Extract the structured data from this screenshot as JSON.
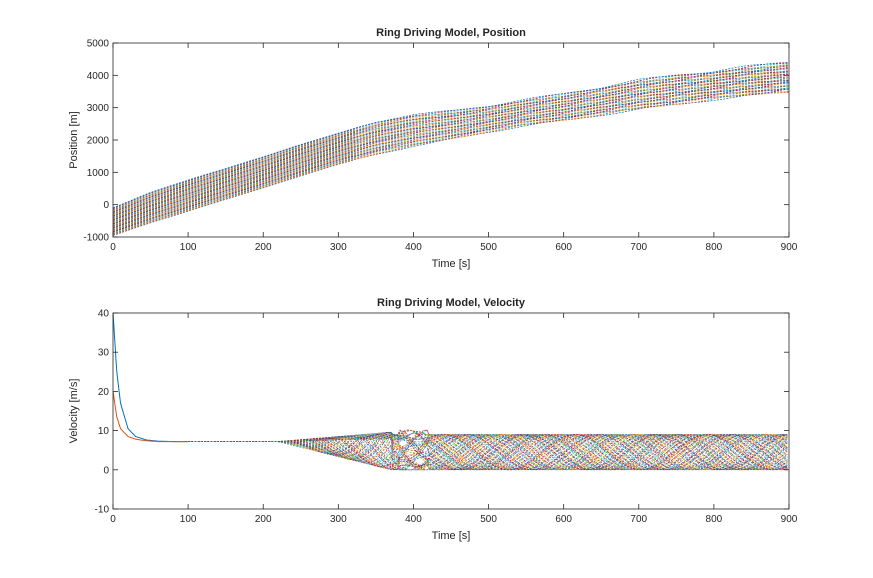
{
  "chart_data": [
    {
      "type": "line",
      "title": "Ring Driving Model, Position",
      "xlabel": "Time [s]",
      "ylabel": "Position [m]",
      "xlim": [
        0,
        900
      ],
      "ylim": [
        -1000,
        5000
      ],
      "xticks": [
        0,
        100,
        200,
        300,
        400,
        500,
        600,
        700,
        800,
        900
      ],
      "yticks": [
        -1000,
        0,
        1000,
        2000,
        3000,
        4000,
        5000
      ],
      "grid": false,
      "legend": "none",
      "series_count": 50,
      "colors": [
        "#0072BD",
        "#D95319",
        "#EDB120",
        "#7E2F8E",
        "#77AC30",
        "#4DBEEE",
        "#A2142F"
      ],
      "envelope": {
        "x": [
          0,
          50,
          100,
          150,
          200,
          250,
          300,
          350,
          400,
          450,
          500,
          550,
          600,
          650,
          700,
          750,
          800,
          850,
          900
        ],
        "lower": [
          -950,
          -560,
          -200,
          165,
          520,
          890,
          1250,
          1560,
          1810,
          2020,
          2250,
          2450,
          2600,
          2780,
          2950,
          3100,
          3260,
          3380,
          3500
        ],
        "upper": [
          -100,
          380,
          760,
          1120,
          1480,
          1860,
          2210,
          2560,
          2780,
          2900,
          3050,
          3250,
          3430,
          3620,
          3850,
          4000,
          4120,
          4280,
          4400
        ]
      }
    },
    {
      "type": "line",
      "title": "Ring Driving Model, Velocity",
      "xlabel": "Time [s]",
      "ylabel": "Velocity [m/s]",
      "xlim": [
        0,
        900
      ],
      "ylim": [
        -10,
        40
      ],
      "xticks": [
        0,
        100,
        200,
        300,
        400,
        500,
        600,
        700,
        800,
        900
      ],
      "yticks": [
        -10,
        0,
        10,
        20,
        30,
        40
      ],
      "grid": false,
      "legend": "none",
      "series_count": 50,
      "colors": [
        "#0072BD",
        "#D95319",
        "#EDB120",
        "#7E2F8E",
        "#77AC30",
        "#4DBEEE",
        "#A2142F"
      ],
      "initial_decay": [
        {
          "x": [
            0,
            5,
            10,
            20,
            30,
            45,
            60,
            80,
            100
          ],
          "y": [
            40,
            25,
            17,
            10.5,
            8.5,
            7.6,
            7.3,
            7.2,
            7.2
          ]
        },
        {
          "x": [
            0,
            5,
            10,
            20,
            30,
            45,
            60,
            80,
            100
          ],
          "y": [
            20,
            13.5,
            10.5,
            8.5,
            7.8,
            7.4,
            7.2,
            7.2,
            7.2
          ]
        }
      ],
      "steady_velocity": 7.2,
      "oscillation_range": [
        0,
        9
      ],
      "oscillation_onset": 220
    }
  ]
}
